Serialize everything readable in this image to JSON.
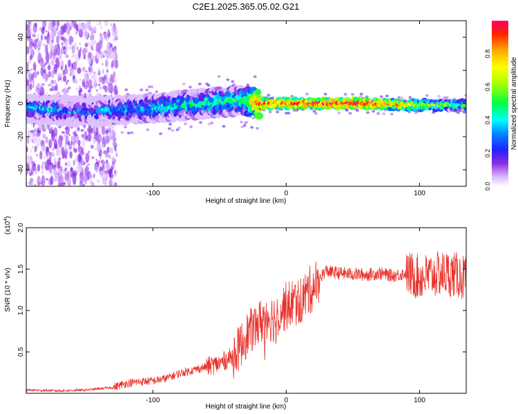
{
  "figure": {
    "title": "C2E1.2025.365.05.02.G21"
  },
  "chart_data": [
    {
      "type": "heatmap",
      "name": "spectrogram",
      "xlabel": "Height of straight line (km)",
      "ylabel": "Frequency (Hz)",
      "xlim": [
        -195,
        135
      ],
      "ylim": [
        -50,
        50
      ],
      "xticks": [
        -100,
        0,
        100
      ],
      "yticks": [
        -40,
        -20,
        0,
        20,
        40
      ],
      "xtick_labels": [
        "-100",
        "0",
        "100"
      ],
      "ytick_labels": [
        "-40",
        "-20",
        "0",
        "20",
        "40"
      ],
      "description_points": [
        {
          "x": -190,
          "y": -3,
          "v": 0.35
        },
        {
          "x": -150,
          "y": -5,
          "v": 0.3
        },
        {
          "x": -100,
          "y": -3,
          "v": 0.4
        },
        {
          "x": -60,
          "y": 0,
          "v": 0.45
        },
        {
          "x": -30,
          "y": 2,
          "v": 0.5
        },
        {
          "x": -20,
          "y": 0,
          "v": 0.9
        },
        {
          "x": 0,
          "y": 0,
          "v": 0.9
        },
        {
          "x": 60,
          "y": 0,
          "v": 0.95
        },
        {
          "x": 100,
          "y": -1,
          "v": 0.7
        },
        {
          "x": 135,
          "y": -1,
          "v": 0.5
        }
      ],
      "colorbar": {
        "label": "Normalized spectral amplitude",
        "range": [
          0,
          1
        ],
        "ticks": [
          0.0,
          0.2,
          0.4,
          0.6,
          0.8
        ],
        "tick_labels": [
          "0.0",
          "0.2",
          "0.4",
          "0.6",
          "0.8"
        ]
      }
    },
    {
      "type": "line",
      "name": "snr",
      "xlabel": "Height of straight line (km)",
      "ylabel": "SNR (10 * v/v)",
      "multiplier": "(x10^4)",
      "multiplier_base": "(x10",
      "multiplier_exp": "4",
      "multiplier_close": ")",
      "xlim": [
        -195,
        135
      ],
      "ylim": [
        0,
        2.0
      ],
      "xticks": [
        -100,
        0,
        100
      ],
      "yticks": [
        0.5,
        1.0,
        1.5,
        2.0
      ],
      "xtick_labels": [
        "-100",
        "0",
        "100"
      ],
      "ytick_labels": [
        "0.5",
        "1.0",
        "1.5",
        "2.0"
      ],
      "series": [
        {
          "name": "SNR",
          "color": "#e8322b",
          "x": [
            -195,
            -170,
            -150,
            -130,
            -120,
            -110,
            -100,
            -90,
            -80,
            -70,
            -60,
            -50,
            -40,
            -35,
            -30,
            -25,
            -20,
            -15,
            -10,
            -5,
            0,
            5,
            10,
            15,
            20,
            25,
            30,
            35,
            40,
            50,
            60,
            70,
            80,
            90,
            100,
            110,
            120,
            130,
            135
          ],
          "y": [
            0.04,
            0.03,
            0.04,
            0.07,
            0.12,
            0.14,
            0.15,
            0.18,
            0.24,
            0.28,
            0.32,
            0.36,
            0.45,
            0.55,
            0.7,
            0.78,
            0.85,
            0.95,
            0.9,
            1.0,
            1.05,
            1.1,
            1.1,
            1.2,
            1.28,
            1.4,
            1.48,
            1.46,
            1.45,
            1.44,
            1.43,
            1.45,
            1.42,
            1.45,
            1.4,
            1.43,
            1.45,
            1.42,
            1.38
          ]
        }
      ]
    }
  ]
}
